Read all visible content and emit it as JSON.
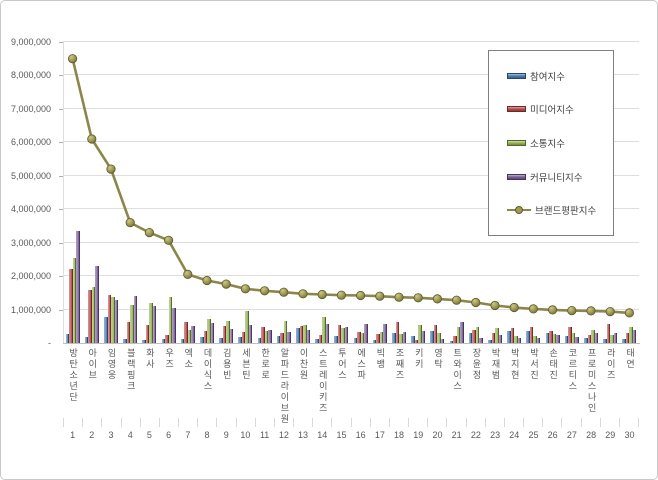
{
  "chart_data": {
    "type": "combo-bar-line",
    "title": "",
    "categories": [
      "방탄소년단",
      "아이브",
      "임영웅",
      "블랙핑크",
      "화사",
      "우즈",
      "엑소",
      "데이식스",
      "김용빈",
      "세븐틴",
      "한로로",
      "알파드라이브원",
      "이찬원",
      "스트레이키즈",
      "투어스",
      "에스파",
      "빅뱅",
      "조째즈",
      "키키",
      "영탁",
      "트와이스",
      "장윤정",
      "박재범",
      "박지현",
      "박서진",
      "손태진",
      "코르티스",
      "프로미스나인",
      "라이즈",
      "태연"
    ],
    "ranks": [
      "1",
      "2",
      "3",
      "4",
      "5",
      "6",
      "7",
      "8",
      "9",
      "10",
      "11",
      "12",
      "13",
      "14",
      "15",
      "16",
      "17",
      "18",
      "19",
      "20",
      "21",
      "22",
      "23",
      "24",
      "25",
      "26",
      "27",
      "28",
      "29",
      "30"
    ],
    "y_axis": {
      "min": 0,
      "max": 9000000,
      "tick_interval": 1000000,
      "tick_labels_top_down": [
        "9,000,000",
        "8,000,000",
        "7,000,000",
        "6,000,000",
        "5,000,000",
        "4,000,000",
        "3,000,000",
        "2,000,000",
        "1,000,000",
        "-"
      ]
    },
    "grid": true,
    "legend_position": "inside-right",
    "series": [
      {
        "name": "참여지수",
        "type": "bar",
        "color": "#4F81BD",
        "values": [
          280000,
          180000,
          780000,
          120000,
          100000,
          120000,
          130000,
          180000,
          150000,
          170000,
          140000,
          200000,
          440000,
          110000,
          210000,
          140000,
          80000,
          300000,
          200000,
          350000,
          60000,
          300000,
          100000,
          350000,
          370000,
          300000,
          200000,
          150000,
          130000,
          130000
        ]
      },
      {
        "name": "미디어지수",
        "type": "bar",
        "color": "#C0504D",
        "values": [
          2200000,
          1600000,
          1450000,
          620000,
          550000,
          250000,
          620000,
          350000,
          500000,
          320000,
          470000,
          300000,
          510000,
          250000,
          550000,
          340000,
          270000,
          630000,
          100000,
          550000,
          200000,
          400000,
          300000,
          450000,
          470000,
          350000,
          470000,
          250000,
          570000,
          300000
        ]
      },
      {
        "name": "소통지수",
        "type": "bar",
        "color": "#9BBB59",
        "values": [
          2550000,
          1680000,
          1380000,
          1150000,
          1200000,
          1380000,
          400000,
          720000,
          650000,
          950000,
          350000,
          650000,
          550000,
          770000,
          440000,
          300000,
          330000,
          280000,
          550000,
          300000,
          480000,
          480000,
          450000,
          220000,
          200000,
          270000,
          300000,
          400000,
          250000,
          470000
        ]
      },
      {
        "name": "커뮤니티지수",
        "type": "bar",
        "color": "#8064A2",
        "values": [
          3350000,
          2300000,
          1300000,
          1400000,
          1100000,
          1050000,
          500000,
          600000,
          420000,
          550000,
          400000,
          320000,
          400000,
          580000,
          490000,
          570000,
          570000,
          330000,
          370000,
          120000,
          640000,
          150000,
          250000,
          140000,
          140000,
          250000,
          170000,
          300000,
          300000,
          400000
        ]
      },
      {
        "name": "브랜드평판지수",
        "type": "line",
        "color": "#8B874A",
        "marker_fill": "#A09C55",
        "marker_stroke": "#5E5A2E",
        "values": [
          8500000,
          6100000,
          5200000,
          3600000,
          3300000,
          3070000,
          2050000,
          1870000,
          1760000,
          1620000,
          1560000,
          1520000,
          1470000,
          1450000,
          1430000,
          1420000,
          1400000,
          1370000,
          1350000,
          1320000,
          1280000,
          1210000,
          1120000,
          1060000,
          1020000,
          990000,
          970000,
          960000,
          940000,
          900000
        ]
      }
    ]
  }
}
